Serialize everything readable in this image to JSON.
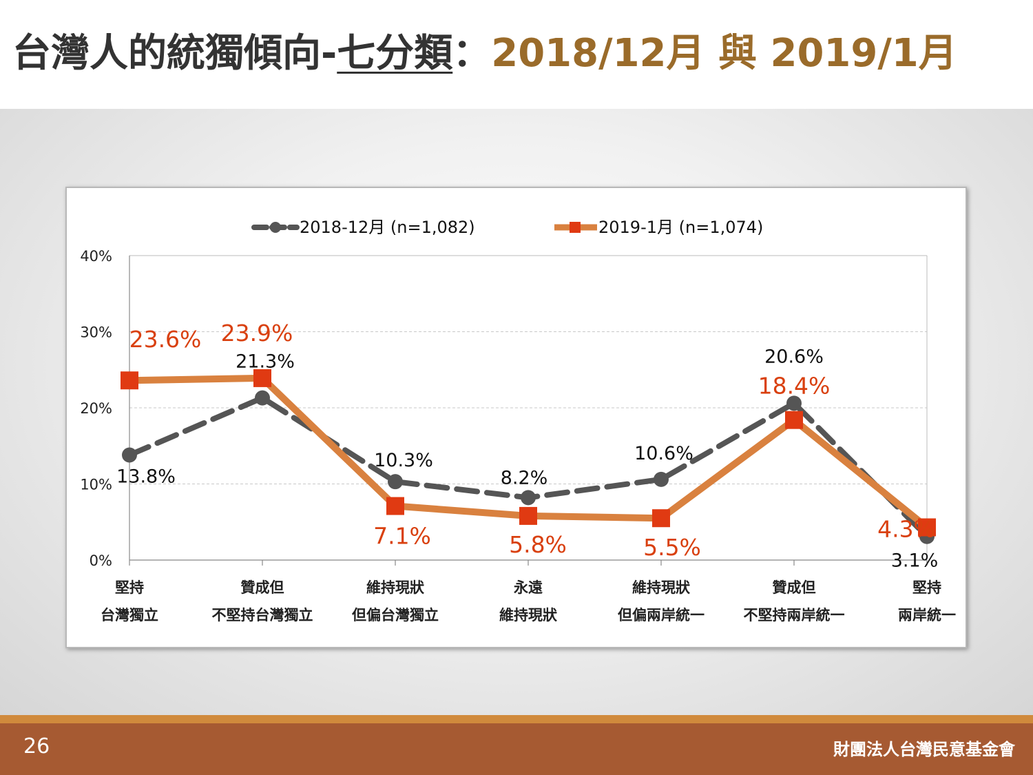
{
  "title": {
    "prefix": "台灣人的統獨傾向-",
    "underlined": "七分類",
    "colon": "：",
    "dates": "2018/12月 與 2019/1月"
  },
  "footer": {
    "page_number": "26",
    "organization": "財團法人台灣民意基金會"
  },
  "colors": {
    "series_2018": "#555555",
    "series_2019": "#d9813f",
    "marker_2019": "#e03a12",
    "label_2019": "#d9400f",
    "title_dates": "#9a6b2a",
    "footer_bg": "#a65a32"
  },
  "chart_data": {
    "type": "line",
    "y_ticks": [
      "0%",
      "10%",
      "20%",
      "30%",
      "40%"
    ],
    "ylim": [
      0,
      40
    ],
    "grid": true,
    "legend_position": "top",
    "categories": [
      [
        "堅持",
        "台灣獨立"
      ],
      [
        "贊成但",
        "不堅持台灣獨立"
      ],
      [
        "維持現狀",
        "但偏台灣獨立"
      ],
      [
        "永遠",
        "維持現狀"
      ],
      [
        "維持現狀",
        "但偏兩岸統一"
      ],
      [
        "贊成但",
        "不堅持兩岸統一"
      ],
      [
        "堅持",
        "兩岸統一"
      ]
    ],
    "series": [
      {
        "name": "2018-12月  (n=1,082)",
        "values": [
          13.8,
          21.3,
          10.3,
          8.2,
          10.6,
          20.6,
          3.1
        ],
        "labels": [
          "13.8%",
          "21.3%",
          "10.3%",
          "8.2%",
          "10.6%",
          "20.6%",
          "3.1%"
        ]
      },
      {
        "name": "2019-1月  (n=1,074)",
        "values": [
          23.6,
          23.9,
          7.1,
          5.8,
          5.5,
          18.4,
          4.3
        ],
        "labels": [
          "23.6%",
          "23.9%",
          "7.1%",
          "5.8%",
          "5.5%",
          "18.4%",
          "4.3%"
        ]
      }
    ]
  }
}
